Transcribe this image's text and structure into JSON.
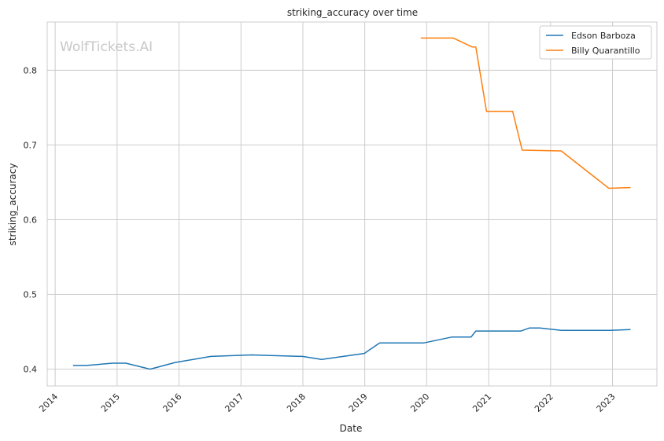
{
  "watermark": "WolfTickets.AI",
  "chart_data": {
    "type": "line",
    "title": "striking_accuracy over time",
    "xlabel": "Date",
    "ylabel": "striking_accuracy",
    "xlim": [
      "2013-11-15",
      "2023-09-20"
    ],
    "ylim": [
      0.3775,
      0.8645
    ],
    "x_ticks": [
      "2014",
      "2015",
      "2016",
      "2017",
      "2018",
      "2019",
      "2020",
      "2021",
      "2022",
      "2023"
    ],
    "y_ticks": [
      "0.4",
      "0.5",
      "0.6",
      "0.7",
      "0.8"
    ],
    "grid": true,
    "legend_position": "top-right",
    "series": [
      {
        "name": "Edson Barboza",
        "color": "#1f77b4",
        "points": [
          [
            "2014-04-19",
            0.405
          ],
          [
            "2014-07-05",
            0.405
          ],
          [
            "2014-12-06",
            0.408
          ],
          [
            "2015-02-22",
            0.408
          ],
          [
            "2015-07-15",
            0.4
          ],
          [
            "2015-12-10",
            0.409
          ],
          [
            "2016-07-07",
            0.417
          ],
          [
            "2017-03-04",
            0.419
          ],
          [
            "2017-12-30",
            0.417
          ],
          [
            "2018-04-21",
            0.413
          ],
          [
            "2018-12-29",
            0.421
          ],
          [
            "2019-03-30",
            0.435
          ],
          [
            "2019-12-14",
            0.435
          ],
          [
            "2020-05-30",
            0.443
          ],
          [
            "2020-09-19",
            0.443
          ],
          [
            "2020-10-17",
            0.451
          ],
          [
            "2021-07-10",
            0.451
          ],
          [
            "2021-08-28",
            0.455
          ],
          [
            "2021-10-30",
            0.455
          ],
          [
            "2022-03-05",
            0.452
          ],
          [
            "2022-12-17",
            0.452
          ],
          [
            "2023-04-15",
            0.453
          ]
        ]
      },
      {
        "name": "Billy Quarantillo",
        "color": "#ff7f0e",
        "points": [
          [
            "2019-11-30",
            0.843
          ],
          [
            "2020-06-06",
            0.843
          ],
          [
            "2020-09-26",
            0.831
          ],
          [
            "2020-10-17",
            0.831
          ],
          [
            "2020-12-19",
            0.745
          ],
          [
            "2021-05-22",
            0.745
          ],
          [
            "2021-07-17",
            0.693
          ],
          [
            "2022-03-05",
            0.692
          ],
          [
            "2022-12-10",
            0.642
          ],
          [
            "2023-04-15",
            0.643
          ]
        ]
      }
    ]
  }
}
